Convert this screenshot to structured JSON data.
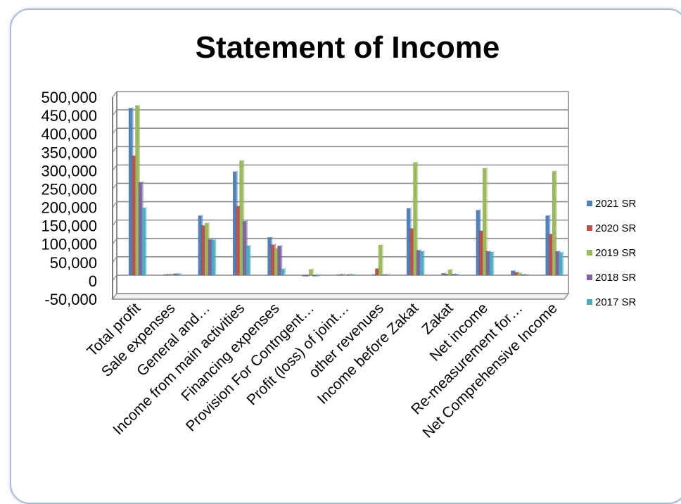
{
  "chart_data": {
    "type": "bar",
    "title": "Statement of Income",
    "xlabel": "",
    "ylabel": "",
    "ylim": [
      -50000,
      500000
    ],
    "yticks": [
      -50000,
      0,
      50000,
      100000,
      150000,
      200000,
      250000,
      300000,
      350000,
      400000,
      450000,
      500000
    ],
    "ytick_labels": [
      "-50,000",
      "0",
      "50,000",
      "100,000",
      "150,000",
      "200,000",
      "250,000",
      "300,000",
      "350,000",
      "400,000",
      "450,000",
      "500,000"
    ],
    "grid": true,
    "legend_position": "right",
    "categories": [
      "Total profit",
      "Sale expenses",
      "General and…",
      "Income from main activities",
      "Financing expenses",
      "Provision For Contngent…",
      "Profit (loss) of joint…",
      "other revenues",
      "Income before Zakat",
      "Zakat",
      "Net income",
      "Re-measurement for…",
      "Net Comprehensive Income"
    ],
    "series": [
      {
        "name": "2021 SR",
        "color": "#4f81bd",
        "values": [
          455000,
          2000,
          162000,
          282000,
          103000,
          -3000,
          2000,
          2000,
          182000,
          5000,
          177000,
          12000,
          162000
        ]
      },
      {
        "name": "2020 SR",
        "color": "#c0504d",
        "values": [
          325000,
          2000,
          135000,
          188000,
          83000,
          -3000,
          2000,
          18000,
          127000,
          3000,
          121000,
          8000,
          112000
        ]
      },
      {
        "name": "2019 SR",
        "color": "#9bbb59",
        "values": [
          462000,
          3000,
          142000,
          312000,
          73000,
          16000,
          2000,
          82000,
          307000,
          15000,
          291000,
          6000,
          283000
        ]
      },
      {
        "name": "2018 SR",
        "color": "#8064a2",
        "values": [
          253000,
          4000,
          97000,
          147000,
          80000,
          -3000,
          2000,
          2000,
          68000,
          3000,
          65000,
          2000,
          65000
        ]
      },
      {
        "name": "2017 SR",
        "color": "#4bacc6",
        "values": [
          183000,
          4000,
          96000,
          80000,
          17000,
          -3000,
          2000,
          2000,
          65000,
          3000,
          63000,
          2000,
          62000
        ]
      }
    ]
  }
}
